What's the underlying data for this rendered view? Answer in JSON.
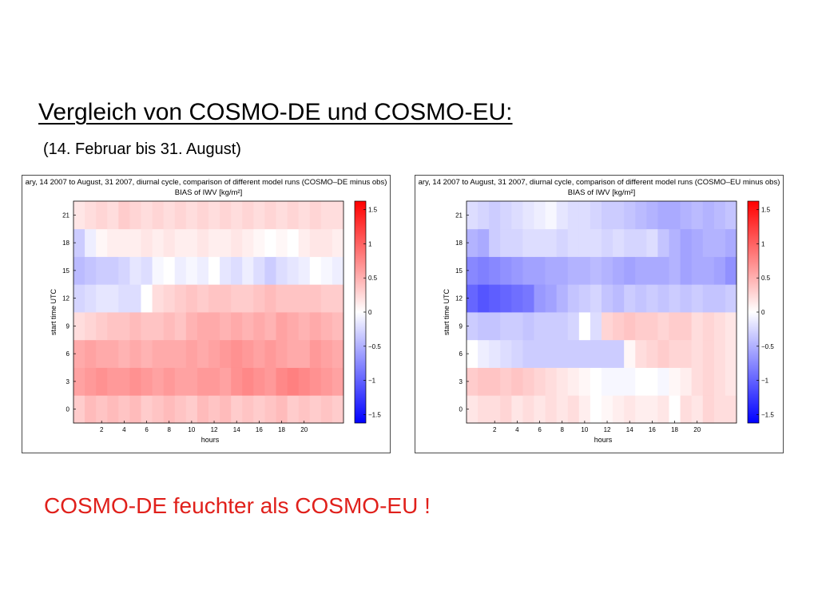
{
  "slide": {
    "title": "Vergleich von COSMO-DE und COSMO-EU:",
    "subtitle": "(14. Februar bis 31. August)",
    "conclusion": "COSMO-DE feuchter als COSMO-EU !"
  },
  "colors": {
    "positive": "#ff0000",
    "negative": "#0000ff",
    "neutral": "#ffffff",
    "conclusion_text": "#e0201b"
  },
  "chart_data": [
    {
      "type": "heatmap",
      "title": "ary, 14 2007 to August, 31 2007, diurnal cycle, comparison of different model runs (COSMO–DE minus obs)",
      "subtitle": "BIAS of IWV [kg/m²]",
      "xlabel": "hours",
      "ylabel": "start time UTC",
      "x_ticks": [
        "2",
        "4",
        "6",
        "8",
        "10",
        "12",
        "14",
        "16",
        "18",
        "20"
      ],
      "y_ticks": [
        "0",
        "3",
        "6",
        "9",
        "12",
        "15",
        "18",
        "21"
      ],
      "colorbar_ticks": [
        "1.5",
        "1",
        "0.5",
        "0",
        "−0.5",
        "−1",
        "−1.5"
      ],
      "clim": [
        -1.5,
        1.5
      ],
      "x": [
        0,
        1,
        2,
        3,
        4,
        5,
        6,
        7,
        8,
        9,
        10,
        11,
        12,
        13,
        14,
        15,
        16,
        17,
        18,
        19,
        20,
        21,
        22,
        23
      ],
      "y": [
        0,
        3,
        6,
        9,
        12,
        15,
        18,
        21
      ],
      "values": [
        [
          0.3,
          0.4,
          0.35,
          0.4,
          0.35,
          0.4,
          0.3,
          0.35,
          0.4,
          0.35,
          0.3,
          0.4,
          0.35,
          0.4,
          0.3,
          0.35,
          0.3,
          0.35,
          0.4,
          0.3,
          0.35,
          0.3,
          0.35,
          0.3
        ],
        [
          0.55,
          0.6,
          0.65,
          0.6,
          0.6,
          0.65,
          0.6,
          0.55,
          0.6,
          0.55,
          0.55,
          0.6,
          0.6,
          0.55,
          0.65,
          0.7,
          0.65,
          0.6,
          0.7,
          0.75,
          0.7,
          0.65,
          0.6,
          0.55
        ],
        [
          0.5,
          0.55,
          0.5,
          0.5,
          0.45,
          0.5,
          0.45,
          0.5,
          0.5,
          0.5,
          0.55,
          0.5,
          0.55,
          0.6,
          0.65,
          0.6,
          0.55,
          0.6,
          0.55,
          0.5,
          0.5,
          0.6,
          0.55,
          0.5
        ],
        [
          0.2,
          0.25,
          0.3,
          0.35,
          0.35,
          0.4,
          0.35,
          0.35,
          0.4,
          0.35,
          0.45,
          0.5,
          0.5,
          0.45,
          0.5,
          0.45,
          0.5,
          0.45,
          0.55,
          0.5,
          0.45,
          0.5,
          0.45,
          0.4
        ],
        [
          -0.25,
          -0.2,
          -0.15,
          -0.15,
          -0.2,
          -0.2,
          0.0,
          0.2,
          0.25,
          0.3,
          0.35,
          0.3,
          0.35,
          0.35,
          0.3,
          0.3,
          0.35,
          0.4,
          0.35,
          0.35,
          0.35,
          0.35,
          0.3,
          0.3
        ],
        [
          -0.4,
          -0.35,
          -0.3,
          -0.3,
          -0.25,
          -0.15,
          -0.2,
          -0.05,
          0.0,
          -0.1,
          -0.05,
          -0.1,
          0.0,
          -0.15,
          -0.2,
          -0.1,
          -0.2,
          -0.3,
          -0.2,
          -0.15,
          -0.1,
          0.0,
          -0.05,
          -0.1
        ],
        [
          -0.3,
          -0.1,
          0.05,
          0.1,
          0.1,
          0.1,
          0.15,
          0.1,
          0.15,
          0.1,
          0.1,
          0.15,
          0.1,
          0.1,
          0.15,
          0.1,
          0.05,
          0.0,
          0.05,
          0.0,
          0.1,
          0.15,
          0.15,
          0.1
        ],
        [
          0.15,
          0.2,
          0.25,
          0.2,
          0.3,
          0.25,
          0.2,
          0.25,
          0.2,
          0.25,
          0.2,
          0.25,
          0.2,
          0.25,
          0.2,
          0.25,
          0.2,
          0.25,
          0.2,
          0.25,
          0.2,
          0.25,
          0.2,
          0.2
        ]
      ]
    },
    {
      "type": "heatmap",
      "title": "ary, 14 2007 to August, 31 2007, diurnal cycle, comparison of different model runs (COSMO–EU minus obs)",
      "subtitle": "BIAS of IWV [kg/m²]",
      "xlabel": "hours",
      "ylabel": "start time UTC",
      "x_ticks": [
        "2",
        "4",
        "6",
        "8",
        "10",
        "12",
        "14",
        "16",
        "18",
        "20"
      ],
      "y_ticks": [
        "0",
        "3",
        "6",
        "9",
        "12",
        "15",
        "18",
        "21"
      ],
      "colorbar_ticks": [
        "1.5",
        "1",
        "0.5",
        "0",
        "−0.5",
        "−1",
        "−1.5"
      ],
      "clim": [
        -1.5,
        1.5
      ],
      "x": [
        0,
        1,
        2,
        3,
        4,
        5,
        6,
        7,
        8,
        9,
        10,
        11,
        12,
        13,
        14,
        15,
        16,
        17,
        18,
        19,
        20,
        21,
        22,
        23
      ],
      "y": [
        0,
        3,
        6,
        9,
        12,
        15,
        18,
        21
      ],
      "values": [
        [
          0.15,
          0.2,
          0.2,
          0.25,
          0.15,
          0.2,
          0.15,
          0.2,
          0.15,
          0.2,
          0.1,
          0.0,
          0.05,
          0.1,
          0.15,
          0.1,
          0.1,
          0.15,
          0.0,
          0.2,
          0.15,
          0.25,
          0.2,
          0.2
        ],
        [
          0.3,
          0.35,
          0.35,
          0.3,
          0.35,
          0.3,
          0.25,
          0.2,
          0.15,
          0.1,
          0.05,
          0.0,
          -0.05,
          -0.05,
          -0.05,
          0.0,
          0.0,
          -0.05,
          0.05,
          0.1,
          0.2,
          0.25,
          0.2,
          0.15
        ],
        [
          0.0,
          -0.1,
          -0.15,
          -0.2,
          -0.25,
          -0.3,
          -0.3,
          -0.3,
          -0.3,
          -0.3,
          -0.3,
          -0.3,
          -0.3,
          -0.3,
          0.05,
          0.2,
          0.25,
          0.3,
          0.25,
          0.25,
          0.2,
          0.25,
          0.2,
          0.15
        ],
        [
          -0.3,
          -0.35,
          -0.35,
          -0.3,
          -0.3,
          -0.35,
          -0.3,
          -0.3,
          -0.3,
          -0.25,
          0.0,
          -0.2,
          0.25,
          0.3,
          0.35,
          0.3,
          0.3,
          0.25,
          0.3,
          0.3,
          0.2,
          0.25,
          0.2,
          0.15
        ],
        [
          -0.9,
          -1.0,
          -0.95,
          -0.9,
          -0.85,
          -0.8,
          -0.6,
          -0.55,
          -0.45,
          -0.35,
          -0.3,
          -0.25,
          -0.35,
          -0.4,
          -0.3,
          -0.35,
          -0.3,
          -0.35,
          -0.3,
          -0.35,
          -0.3,
          -0.35,
          -0.35,
          -0.3
        ],
        [
          -0.7,
          -0.75,
          -0.7,
          -0.65,
          -0.6,
          -0.55,
          -0.55,
          -0.5,
          -0.5,
          -0.45,
          -0.45,
          -0.4,
          -0.45,
          -0.5,
          -0.55,
          -0.5,
          -0.5,
          -0.5,
          -0.45,
          -0.55,
          -0.5,
          -0.5,
          -0.55,
          -0.65
        ],
        [
          -0.45,
          -0.5,
          -0.3,
          -0.25,
          -0.25,
          -0.2,
          -0.2,
          -0.2,
          -0.25,
          -0.2,
          -0.2,
          -0.2,
          -0.25,
          -0.2,
          -0.25,
          -0.25,
          -0.2,
          -0.35,
          -0.45,
          -0.55,
          -0.5,
          -0.45,
          -0.45,
          -0.5
        ],
        [
          -0.2,
          -0.25,
          -0.3,
          -0.25,
          -0.2,
          -0.15,
          -0.1,
          -0.05,
          -0.15,
          -0.2,
          -0.2,
          -0.25,
          -0.3,
          -0.3,
          -0.35,
          -0.4,
          -0.45,
          -0.5,
          -0.5,
          -0.45,
          -0.4,
          -0.45,
          -0.4,
          -0.35
        ]
      ]
    }
  ]
}
